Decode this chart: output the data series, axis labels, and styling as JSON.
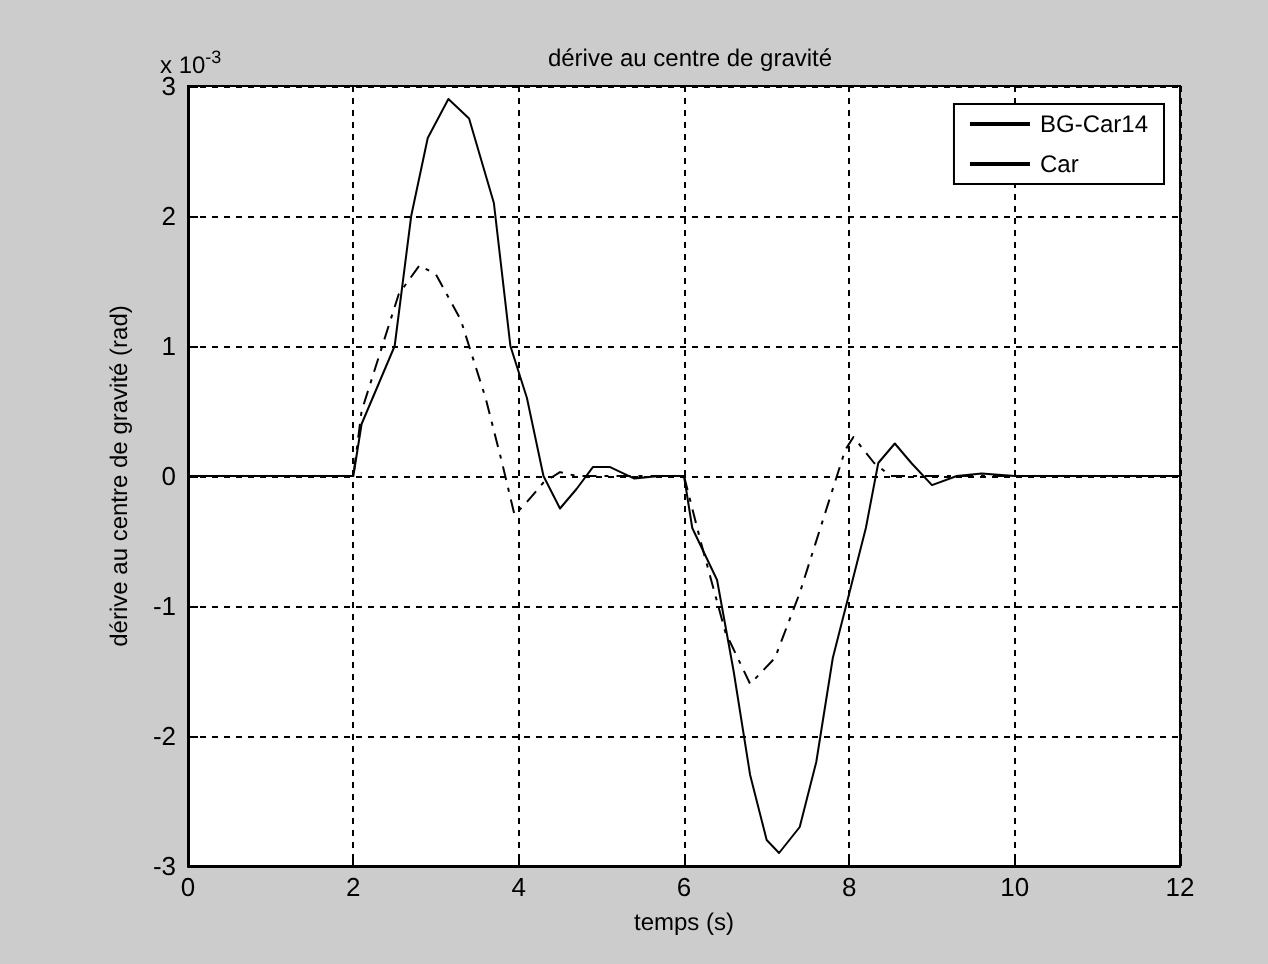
{
  "chart_data": {
    "type": "line",
    "title": "dérive au centre de gravité",
    "xlabel": "temps (s)",
    "ylabel": "dérive au centre de gravité (rad)",
    "annotations": [
      "x 10$^{-3}$"
    ],
    "xlim": [
      0,
      12
    ],
    "xticks": [
      0,
      2,
      4,
      6,
      8,
      10,
      12
    ],
    "ylim": [
      -3,
      3
    ],
    "yticks": [
      -3,
      -2,
      -1,
      0,
      1,
      2,
      3
    ],
    "grid": true,
    "legend": "top right",
    "marker": "none",
    "series": [
      {
        "name": "BG-Car14",
        "color": "#000000",
        "line_style": "solid",
        "x": [
          0,
          1,
          2,
          2.1,
          2.3,
          2.5,
          2.7,
          2.9,
          3.15,
          3.4,
          3.7,
          3.9,
          4.1,
          4.3,
          4.5,
          4.7,
          4.9,
          5.1,
          5.4,
          5.7,
          6,
          6.1,
          6.4,
          6.6,
          6.8,
          7,
          7.15,
          7.4,
          7.6,
          7.8,
          8,
          8.2,
          8.35,
          8.55,
          8.75,
          9,
          9.3,
          9.6,
          10,
          11,
          12
        ],
        "values": [
          0,
          0,
          0,
          0.4,
          0.7,
          1,
          2,
          2.6,
          2.9,
          2.75,
          2.1,
          1,
          0.6,
          0,
          -0.25,
          -0.1,
          0.07,
          0.07,
          -0.02,
          0,
          0,
          -0.4,
          -0.8,
          -1.5,
          -2.3,
          -2.8,
          -2.9,
          -2.7,
          -2.2,
          -1.4,
          -0.9,
          -0.4,
          0.1,
          0.25,
          0.1,
          -0.07,
          0,
          0.02,
          0,
          0,
          0
        ]
      },
      {
        "name": "Car",
        "color": "#000000",
        "line_style": "dashed",
        "x": [
          0,
          1,
          2,
          2.1,
          2.35,
          2.55,
          2.8,
          3,
          3.3,
          3.6,
          3.8,
          3.95,
          4.1,
          4.3,
          4.5,
          4.7,
          5,
          6,
          6.2,
          6.5,
          6.8,
          7.1,
          7.4,
          7.7,
          7.95,
          8.05,
          8.3,
          8.5,
          9,
          10,
          12
        ],
        "values": [
          0,
          0,
          0,
          0.5,
          1,
          1.4,
          1.62,
          1.55,
          1.2,
          0.6,
          0.1,
          -0.3,
          -0.2,
          -0.05,
          0.03,
          0,
          0,
          0,
          -0.5,
          -1.2,
          -1.6,
          -1.4,
          -0.9,
          -0.3,
          0.2,
          0.3,
          0.1,
          0,
          0,
          0,
          0
        ]
      }
    ]
  }
}
